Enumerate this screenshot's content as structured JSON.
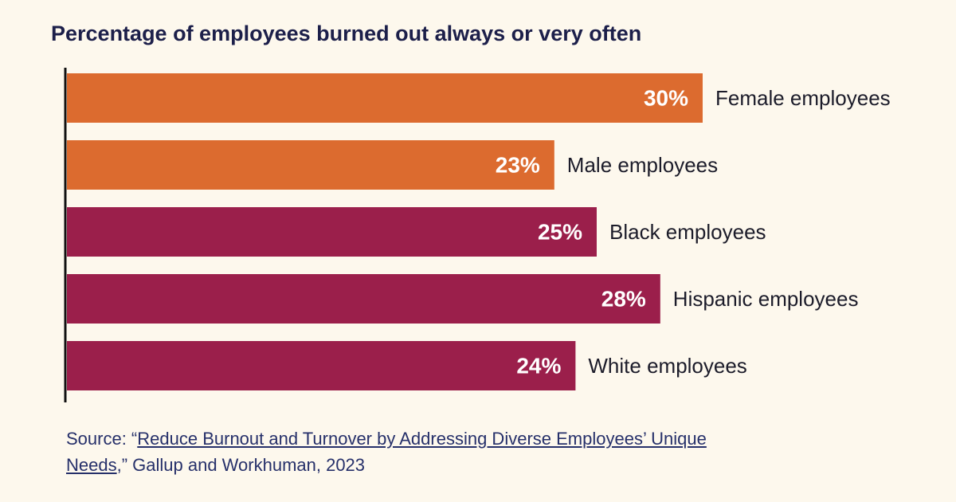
{
  "chart_data": {
    "type": "bar",
    "orientation": "horizontal",
    "title": "Percentage of employees burned out always or very often",
    "categories": [
      "Female employees",
      "Male employees",
      "Black employees",
      "Hispanic employees",
      "White employees"
    ],
    "values": [
      30,
      23,
      25,
      28,
      24
    ],
    "value_labels": [
      "30%",
      "23%",
      "25%",
      "28%",
      "24%"
    ],
    "colors": [
      "#dc6b2f",
      "#dc6b2f",
      "#9b1f4b",
      "#9b1f4b",
      "#9b1f4b"
    ]
  },
  "source": {
    "prefix": "Source: “",
    "link": "Reduce Burnout and Turnover by Addressing Diverse Employees’ Unique Needs",
    "suffix": ",” Gallup and Workhuman, 2023"
  }
}
